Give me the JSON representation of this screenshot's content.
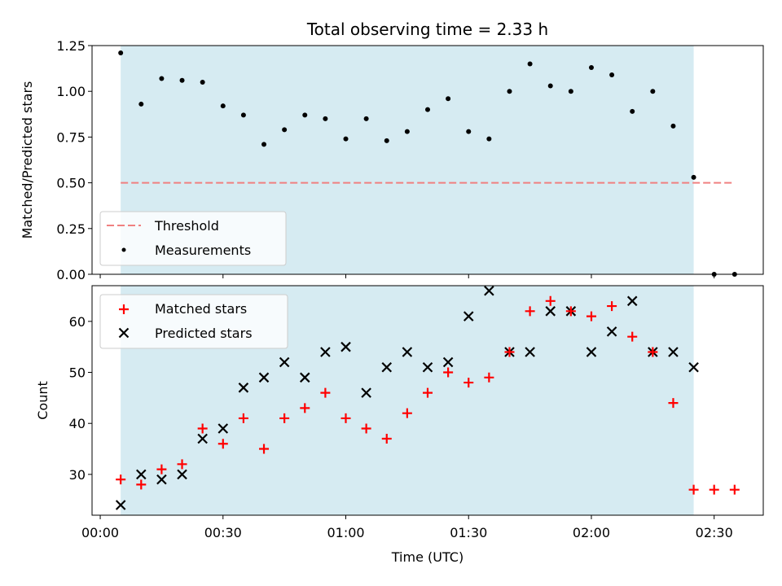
{
  "chart_data": [
    {
      "type": "scatter",
      "title": "Total observing time = 2.33 h",
      "xlabel": "",
      "ylabel": "Matched/Predicted stars",
      "ylim": [
        0.0,
        1.25
      ],
      "yticks": [
        0.0,
        0.25,
        0.5,
        0.75,
        1.0,
        1.25
      ],
      "ytick_labels": [
        "0.00",
        "0.25",
        "0.50",
        "0.75",
        "1.00",
        "1.25"
      ],
      "shaded_region": {
        "x_start": "00:05",
        "x_end": "02:25",
        "color": "#add8e6"
      },
      "threshold": {
        "name": "Threshold",
        "y": 0.5,
        "x_start": "00:05",
        "x_end": "02:35",
        "color": "#f08080",
        "style": "dashed"
      },
      "series": [
        {
          "name": "Measurements",
          "color": "#000000",
          "x": [
            "00:05",
            "00:10",
            "00:15",
            "00:20",
            "00:25",
            "00:30",
            "00:35",
            "00:40",
            "00:45",
            "00:50",
            "00:55",
            "01:00",
            "01:05",
            "01:10",
            "01:15",
            "01:20",
            "01:25",
            "01:30",
            "01:35",
            "01:40",
            "01:45",
            "01:50",
            "01:55",
            "02:00",
            "02:05",
            "02:10",
            "02:15",
            "02:20",
            "02:25",
            "02:30",
            "02:35"
          ],
          "y": [
            1.21,
            0.93,
            1.07,
            1.06,
            1.05,
            0.92,
            0.87,
            0.71,
            0.79,
            0.87,
            0.85,
            0.74,
            0.85,
            0.73,
            0.78,
            0.9,
            0.96,
            0.78,
            0.74,
            1.0,
            1.15,
            1.03,
            1.0,
            1.13,
            1.09,
            0.89,
            1.0,
            0.81,
            0.53,
            0.0,
            0.0
          ]
        }
      ],
      "legend": {
        "placement": "lower-left",
        "entries": [
          "Threshold",
          "Measurements"
        ]
      }
    },
    {
      "type": "scatter",
      "title": "",
      "xlabel": "Time (UTC)",
      "ylabel": "Count",
      "ylim": [
        22,
        67
      ],
      "yticks": [
        30,
        40,
        50,
        60
      ],
      "ytick_labels": [
        "30",
        "40",
        "50",
        "60"
      ],
      "xticks": [
        "00:00",
        "00:30",
        "01:00",
        "01:30",
        "02:00",
        "02:30"
      ],
      "xtick_labels": [
        "00:00",
        "00:30",
        "01:00",
        "01:30",
        "02:00",
        "02:30"
      ],
      "xlim": [
        "23:58",
        "02:42"
      ],
      "shaded_region": {
        "x_start": "00:05",
        "x_end": "02:25",
        "color": "#add8e6"
      },
      "series": [
        {
          "name": "Matched stars",
          "marker": "plus",
          "color": "#ff0000",
          "x": [
            "00:05",
            "00:10",
            "00:15",
            "00:20",
            "00:25",
            "00:30",
            "00:35",
            "00:40",
            "00:45",
            "00:50",
            "00:55",
            "01:00",
            "01:05",
            "01:10",
            "01:15",
            "01:20",
            "01:25",
            "01:30",
            "01:35",
            "01:40",
            "01:45",
            "01:50",
            "01:55",
            "02:00",
            "02:05",
            "02:10",
            "02:15",
            "02:20",
            "02:25",
            "02:30",
            "02:35"
          ],
          "y": [
            29,
            28,
            31,
            32,
            39,
            36,
            41,
            35,
            41,
            43,
            46,
            41,
            39,
            37,
            42,
            46,
            50,
            48,
            49,
            54,
            62,
            64,
            62,
            61,
            63,
            57,
            54,
            44,
            27,
            27,
            27
          ]
        },
        {
          "name": "Predicted stars",
          "marker": "x",
          "color": "#000000",
          "x": [
            "00:05",
            "00:10",
            "00:15",
            "00:20",
            "00:25",
            "00:30",
            "00:35",
            "00:40",
            "00:45",
            "00:50",
            "00:55",
            "01:00",
            "01:05",
            "01:10",
            "01:15",
            "01:20",
            "01:25",
            "01:30",
            "01:35",
            "01:40",
            "01:45",
            "01:50",
            "01:55",
            "02:00",
            "02:05",
            "02:10",
            "02:15",
            "02:20",
            "02:25"
          ],
          "y": [
            24,
            30,
            29,
            30,
            37,
            39,
            47,
            49,
            52,
            49,
            54,
            55,
            46,
            51,
            54,
            51,
            52,
            61,
            66,
            54,
            54,
            62,
            62,
            54,
            58,
            64,
            54,
            54,
            51
          ]
        }
      ],
      "legend": {
        "placement": "upper-left",
        "entries": [
          "Matched stars",
          "Predicted stars"
        ]
      }
    }
  ]
}
